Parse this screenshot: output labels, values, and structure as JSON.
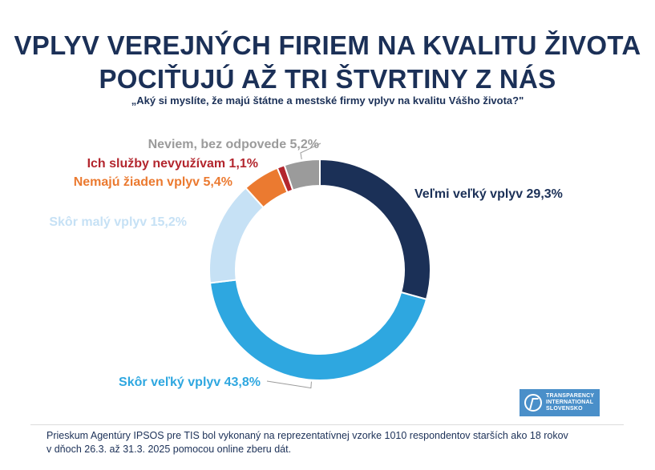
{
  "header": {
    "title_line1": "VPLYV VEREJNÝCH FIRIEM NA KVALITU ŽIVOTA",
    "title_line2": "POCIŤUJÚ AŽ TRI ŠTVRTINY Z NÁS",
    "subtitle": "„Aký si myslíte, že majú štátne a mestské firmy vplyv na kvalitu Vášho života?\""
  },
  "chart_data": {
    "type": "pie",
    "donut": true,
    "title": "VPLYV VEREJNÝCH FIRIEM NA KVALITU ŽIVOTA POCIŤUJÚ AŽ TRI ŠTVRTINY Z NÁS",
    "slices": [
      {
        "label": "Veľmi veľký vplyv 29,3%",
        "value": 29.3,
        "color": "#1b3057"
      },
      {
        "label": "Skôr veľký vplyv 43,8%",
        "value": 43.8,
        "color": "#2ea7e0"
      },
      {
        "label": "Skôr malý vplyv 15,2%",
        "value": 15.2,
        "color": "#c6e1f5"
      },
      {
        "label": "Nemajú žiaden vplyv 5,4%",
        "value": 5.4,
        "color": "#eb7a30"
      },
      {
        "label": "Ich služby nevyužívam 1,1%",
        "value": 1.1,
        "color": "#b3262e"
      },
      {
        "label": "Neviem, bez odpovede 5,2%",
        "value": 5.2,
        "color": "#9b9b9b"
      }
    ],
    "label_colors": [
      "#1b3057",
      "#2ea7e0",
      "#c6e1f5",
      "#eb7a30",
      "#b3262e",
      "#9b9b9b"
    ]
  },
  "footer": {
    "note_line1": "Prieskum Agentúry IPSOS pre TIS bol vykonaný na reprezentatívnej vzorke 1010 respondentov starších ako 18 rokov",
    "note_line2": "v dňoch 26.3. až 31.3. 2025 pomocou online zberu dát.",
    "logo_line1": "TRANSPARENCY",
    "logo_line2": "INTERNATIONAL",
    "logo_line3": "SLOVENSKO"
  }
}
